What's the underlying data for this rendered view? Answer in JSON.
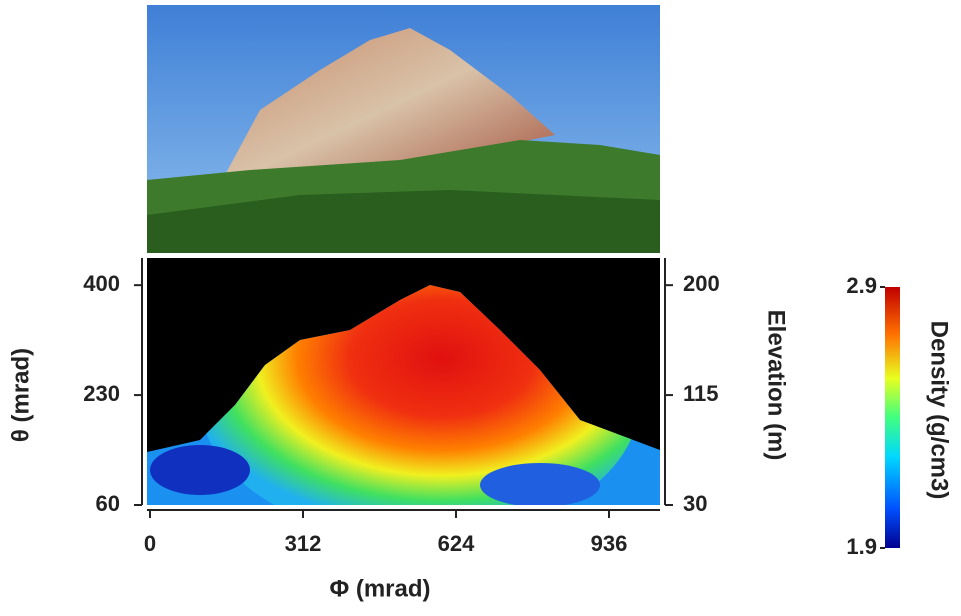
{
  "chart_data": {
    "type": "heatmap",
    "xlabel": "Φ (mrad)",
    "ylabel": "θ (mrad)",
    "y2label": "Elevation (m)",
    "colorbar_label": "Density (g/cm3)",
    "xlim": [
      0,
      1040
    ],
    "xticks": [
      0,
      312,
      624,
      936
    ],
    "ylim": [
      60,
      442
    ],
    "yticks": [
      60,
      230,
      400
    ],
    "y2lim": [
      30,
      221
    ],
    "y2ticks": [
      30,
      115,
      200
    ],
    "colorbar": {
      "lim": [
        1.9,
        2.9
      ],
      "ticks": [
        1.9,
        2.9
      ]
    }
  }
}
